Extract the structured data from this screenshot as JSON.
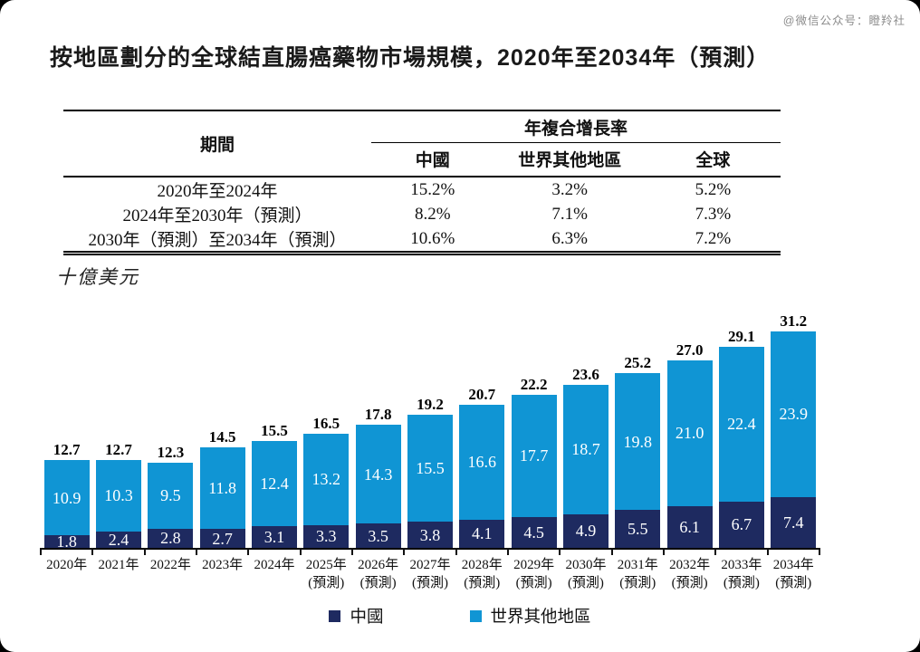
{
  "watermark": "@微信公众号：瞪羚社",
  "title": "按地區劃分的全球結直腸癌藥物市場規模，2020年至2034年（預測）",
  "table": {
    "period_header": "期間",
    "cagr_header": "年複合增長率",
    "columns": [
      "中國",
      "世界其他地區",
      "全球"
    ],
    "rows": [
      {
        "period": "2020年至2024年",
        "values": [
          "15.2%",
          "3.2%",
          "5.2%"
        ]
      },
      {
        "period": "2024年至2030年（預測）",
        "values": [
          "8.2%",
          "7.1%",
          "7.3%"
        ]
      },
      {
        "period": "2030年（預測）至2034年（預測）",
        "values": [
          "10.6%",
          "6.3%",
          "7.2%"
        ]
      }
    ]
  },
  "chart_data": {
    "type": "bar",
    "stacked": true,
    "title": "按地區劃分的全球結直腸癌藥物市場規模，2020年至2034年（預測）",
    "unit_label": "十億美元",
    "ylabel": "十億美元",
    "xlabel": "",
    "ylim": [
      0,
      31.2
    ],
    "grid": false,
    "legend_position": "bottom",
    "categories": [
      "2020年",
      "2021年",
      "2022年",
      "2023年",
      "2024年",
      "2025年",
      "2026年",
      "2027年",
      "2028年",
      "2029年",
      "2030年",
      "2031年",
      "2032年",
      "2033年",
      "2034年"
    ],
    "forecast_suffix": "(預測)",
    "forecast_from_index": 5,
    "series": [
      {
        "name": "中國",
        "color": "#1e2a60",
        "values": [
          1.8,
          2.4,
          2.8,
          2.7,
          3.1,
          3.3,
          3.5,
          3.8,
          4.1,
          4.5,
          4.9,
          5.5,
          6.1,
          6.7,
          7.4
        ]
      },
      {
        "name": "世界其他地區",
        "color": "#1095d4",
        "values": [
          10.9,
          10.3,
          9.5,
          11.8,
          12.4,
          13.2,
          14.3,
          15.5,
          16.6,
          17.7,
          18.7,
          19.8,
          21.0,
          22.4,
          23.9
        ]
      }
    ],
    "totals": [
      12.7,
      12.7,
      12.3,
      14.5,
      15.5,
      16.5,
      17.8,
      19.2,
      20.7,
      22.2,
      23.6,
      25.2,
      27.0,
      29.1,
      31.2
    ]
  }
}
